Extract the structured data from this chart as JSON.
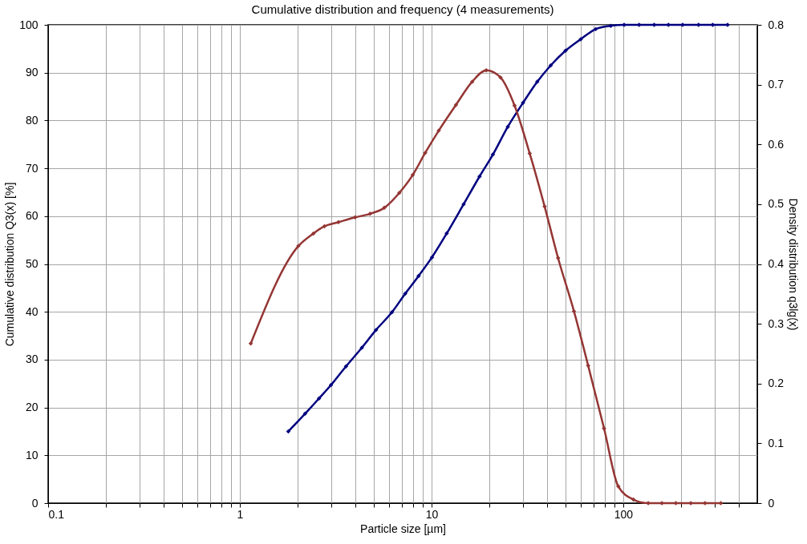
{
  "chart_data": {
    "type": "line",
    "title": "Cumulative distribution and frequency (4 measurements)",
    "xlabel": "Particle size [µm]",
    "ylabel": "Cumulative distribution  Q3(x) [%]",
    "y2label": "Density distribution q3lg(x)",
    "series": [
      {
        "name": null,
        "color": "#000080",
        "axis": "y",
        "x": [
          1.79,
          2.19,
          2.59,
          2.99,
          3.58,
          4.33,
          5.13,
          6.21,
          7.29,
          8.56,
          10.05,
          12.0,
          14.7,
          17.8,
          20.9,
          25.0,
          30.0,
          35.6,
          41.8,
          50.0,
          60.0,
          71.8,
          86.0,
          101,
          121,
          145,
          172,
          204,
          247,
          293,
          350
        ],
        "values": [
          15.0,
          18.7,
          21.9,
          24.7,
          28.6,
          32.5,
          36.2,
          39.9,
          43.8,
          47.5,
          51.4,
          56.4,
          62.5,
          68.3,
          72.9,
          78.7,
          83.7,
          88.1,
          91.5,
          94.6,
          97.0,
          99.1,
          99.8,
          100,
          100,
          100,
          100,
          100,
          100,
          100,
          100
        ]
      },
      {
        "name": null,
        "color": "#943634",
        "axis": "y2",
        "x": [
          1.14,
          2.02,
          2.42,
          2.76,
          3.27,
          3.99,
          4.78,
          5.67,
          6.79,
          7.98,
          9.27,
          10.9,
          13.4,
          16.3,
          19.3,
          22.9,
          27.1,
          32.5,
          38.9,
          45.7,
          55.3,
          65.6,
          79.4,
          94.2,
          113,
          135,
          159,
          188,
          225,
          267,
          323
        ],
        "values": [
          0.267,
          0.43,
          0.451,
          0.463,
          0.47,
          0.478,
          0.484,
          0.494,
          0.519,
          0.549,
          0.586,
          0.623,
          0.666,
          0.705,
          0.724,
          0.712,
          0.665,
          0.585,
          0.496,
          0.41,
          0.321,
          0.23,
          0.125,
          0.028,
          0.006,
          0,
          0,
          0,
          0,
          0,
          0
        ]
      }
    ],
    "xlim": [
      0.1,
      500
    ],
    "xticks": [
      0.1,
      {
        "value": 0.2,
        "label": null
      },
      {
        "value": 0.3,
        "label": null
      },
      {
        "value": 0.4,
        "label": null
      },
      {
        "value": 0.5,
        "label": null
      },
      {
        "value": 0.6,
        "label": null
      },
      {
        "value": 0.7,
        "label": null
      },
      {
        "value": 0.8,
        "label": null
      },
      {
        "value": 0.9,
        "label": null
      },
      1,
      {
        "value": 2,
        "label": null
      },
      {
        "value": 3,
        "label": null
      },
      {
        "value": 4,
        "label": null
      },
      {
        "value": 5,
        "label": null
      },
      {
        "value": 6,
        "label": null
      },
      {
        "value": 7,
        "label": null
      },
      {
        "value": 8,
        "label": null
      },
      {
        "value": 9,
        "label": null
      },
      10,
      {
        "value": 20,
        "label": null
      },
      {
        "value": 30,
        "label": null
      },
      {
        "value": 40,
        "label": null
      },
      {
        "value": 50,
        "label": null
      },
      {
        "value": 60,
        "label": null
      },
      {
        "value": 70,
        "label": null
      },
      {
        "value": 80,
        "label": null
      },
      {
        "value": 90,
        "label": null
      },
      100,
      {
        "value": 200,
        "label": null
      },
      {
        "value": 300,
        "label": null
      },
      {
        "value": 400,
        "label": null
      }
    ],
    "ylim": [
      0,
      100
    ],
    "yticks": [
      0,
      10,
      20,
      30,
      40,
      50,
      60,
      70,
      80,
      90,
      100
    ],
    "y2lim": [
      0,
      0.8
    ],
    "y2ticks": [
      0,
      0.1,
      0.2,
      0.3,
      0.4,
      0.5,
      0.6,
      0.7,
      0.8
    ],
    "log": "x",
    "grid": true,
    "marker": "diamond",
    "line_style": "solid"
  }
}
